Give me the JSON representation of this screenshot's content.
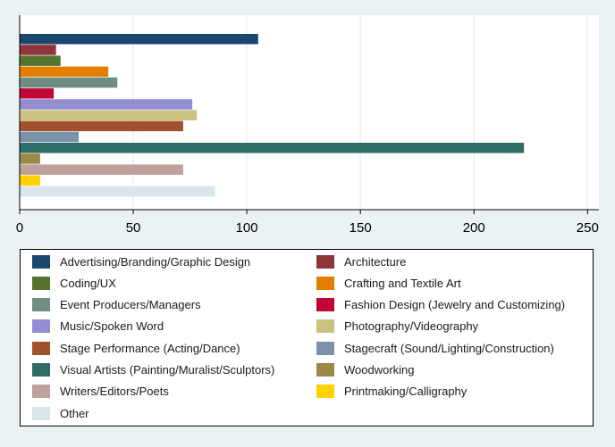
{
  "chart_data": {
    "type": "bar",
    "orientation": "horizontal",
    "xlim": [
      0,
      255
    ],
    "xticks": [
      0,
      50,
      100,
      150,
      200,
      250
    ],
    "grid": "vertical",
    "legend_position": "bottom",
    "legend_columns": 2,
    "series": [
      {
        "name": "Advertising/Branding/Graphic Design",
        "value": 105,
        "color": "#1a476f"
      },
      {
        "name": "Architecture",
        "value": 16,
        "color": "#90353b"
      },
      {
        "name": "Coding/UX",
        "value": 18,
        "color": "#55752f"
      },
      {
        "name": "Crafting and Textile Art",
        "value": 39,
        "color": "#e37e00"
      },
      {
        "name": "Event Producers/Managers",
        "value": 43,
        "color": "#6e8e84"
      },
      {
        "name": "Fashion Design (Jewelry and Customizing)",
        "value": 15,
        "color": "#c10534"
      },
      {
        "name": "Music/Spoken Word",
        "value": 76,
        "color": "#938dd2"
      },
      {
        "name": "Photography/Videography",
        "value": 78,
        "color": "#cac27e"
      },
      {
        "name": "Stage Performance (Acting/Dance)",
        "value": 72,
        "color": "#a0522d"
      },
      {
        "name": "Stagecraft (Sound/Lighting/Construction)",
        "value": 26,
        "color": "#7b92a8"
      },
      {
        "name": "Visual Artists (Painting/Muralist/Sculptors)",
        "value": 222,
        "color": "#2d6d66"
      },
      {
        "name": "Woodworking",
        "value": 9,
        "color": "#9c8847"
      },
      {
        "name": "Writers/Editors/Poets",
        "value": 72,
        "color": "#bfa19c"
      },
      {
        "name": "Printmaking/Calligraphy",
        "value": 9,
        "color": "#ffd200"
      },
      {
        "name": "Other",
        "value": 86,
        "color": "#d9e6eb"
      }
    ]
  }
}
